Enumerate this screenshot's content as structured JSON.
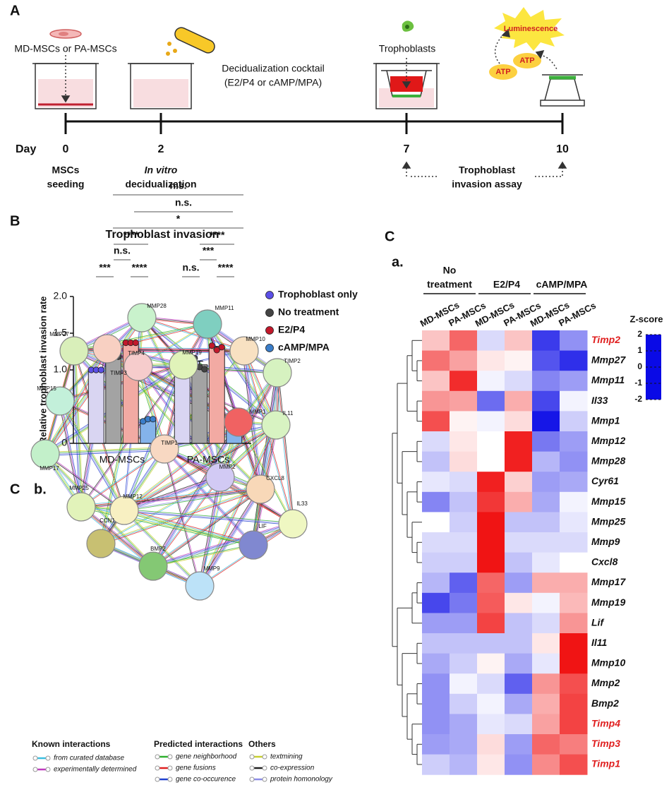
{
  "panel_labels": [
    "A",
    "B",
    "C",
    "C"
  ],
  "sublabels": [
    "a.",
    "b."
  ],
  "schematic": {
    "cells_text": "MD-MSCs or PA-MSCs",
    "cocktail": [
      "Decidualization cocktail",
      "(E2/P4 or cAMP/MPA)"
    ],
    "trophoblasts": "Trophoblasts",
    "luminescence": "Luminescence",
    "atp": [
      "ATP",
      "ATP"
    ],
    "day_label": "Day",
    "days": [
      {
        "day": 0,
        "caption": [
          "MSCs",
          "seeding"
        ]
      },
      {
        "day": 2,
        "caption": [
          "In vitro",
          "decidualization"
        ]
      },
      {
        "day": 7
      },
      {
        "day": 10
      }
    ],
    "assay": [
      "Trophoblast",
      "invasion assay"
    ]
  },
  "chart_data": [
    {
      "type": "bar",
      "title": "Trophoblast invasion",
      "y_label": "Relative trophoblast invasion rate",
      "categories": [
        "MD-MSCs",
        "PA-MSCs"
      ],
      "ylim": [
        0,
        2
      ],
      "yticks": [
        0,
        {
          "value": 0.5,
          "label": "0.5"
        },
        {
          "value": 1,
          "label": "1.0"
        },
        {
          "value": 1.5,
          "label": "1.5"
        },
        {
          "value": 2,
          "label": "2.0"
        }
      ],
      "series": [
        {
          "name": "Trophoblast only",
          "color": "#d9d5f2",
          "point_color": "#5b4fe6",
          "values": [
            1.0,
            1.0
          ],
          "errors": [
            0.005,
            0.005
          ],
          "points": [
            [
              1.0,
              1.0,
              1.0
            ],
            [
              1.0,
              1.0,
              1.0
            ]
          ]
        },
        {
          "name": "No treatment",
          "color": "#a3a3a3",
          "point_color": "#444444",
          "values": [
            1.23,
            1.07
          ],
          "errors": [
            0.06,
            0.05
          ],
          "points": [
            [
              1.35,
              1.17,
              1.18
            ],
            [
              1.16,
              1.04,
              1.01
            ]
          ]
        },
        {
          "name": "E2/P4",
          "color": "#f2aaa3",
          "point_color": "#c2182b",
          "values": [
            1.37,
            1.3
          ],
          "errors": [
            0.005,
            0.02
          ],
          "points": [
            [
              1.37,
              1.37,
              1.37
            ],
            [
              1.33,
              1.27,
              1.31
            ]
          ]
        },
        {
          "name": "cAMP/MPA",
          "color": "#84b3ea",
          "point_color": "#3a7dc9",
          "values": [
            0.32,
            0.32
          ],
          "errors": [
            0.01,
            0.005
          ],
          "points": [
            [
              0.3,
              0.33,
              0.33
            ],
            [
              0.31,
              0.32,
              0.33
            ]
          ]
        }
      ],
      "annotations": [
        "***",
        "n.s.",
        "****",
        "****",
        "n.s.",
        "***",
        "****",
        "****",
        "*",
        "n.s.",
        "n.s."
      ]
    },
    {
      "type": "heatmap",
      "column_groups": [
        {
          "label_lines": [
            "No",
            "treatment"
          ]
        },
        {
          "label_lines": [
            "E2/P4"
          ]
        },
        {
          "label_lines": [
            "cAMP/MPA"
          ]
        }
      ],
      "x": [
        "MD-MSCs",
        "PA-MSCs",
        "MD-MSCs",
        "PA-MSCs",
        "MD-MSCs",
        "PA-MSCs"
      ],
      "y": [
        "Timp2",
        "Mmp27",
        "Mmp11",
        "Il33",
        "Mmp1",
        "Mmp12",
        "Mmp28",
        "Cyr61",
        "Mmp15",
        "Mmp25",
        "Mmp9",
        "Cxcl8",
        "Mmp17",
        "Mmp19",
        "Lif",
        "Il11",
        "Mmp10",
        "Mmp2",
        "Bmp2",
        "Timp4",
        "Timp3",
        "Timp1"
      ],
      "row_label_colors": [
        "#e02020",
        "#111111",
        "#111111",
        "#111111",
        "#111111",
        "#111111",
        "#111111",
        "#111111",
        "#111111",
        "#111111",
        "#111111",
        "#111111",
        "#111111",
        "#111111",
        "#111111",
        "#111111",
        "#111111",
        "#111111",
        "#111111",
        "#e02020",
        "#e02020",
        "#e02020"
      ],
      "values": [
        [
          0.5,
          1.3,
          -0.3,
          0.5,
          -1.6,
          -0.9
        ],
        [
          1.2,
          0.8,
          0.2,
          0.1,
          -1.4,
          -1.7
        ],
        [
          0.5,
          1.8,
          -0.1,
          -0.3,
          -1.0,
          -0.8
        ],
        [
          0.9,
          0.8,
          -1.2,
          0.7,
          -1.5,
          -0.1
        ],
        [
          1.5,
          0.1,
          -0.1,
          0.3,
          -1.9,
          -0.4
        ],
        [
          -0.3,
          0.2,
          0.0,
          1.9,
          -1.1,
          -0.8
        ],
        [
          -0.5,
          0.3,
          0.0,
          1.9,
          -0.6,
          -0.9
        ],
        [
          -0.2,
          -0.3,
          1.9,
          0.4,
          -0.8,
          -0.7
        ],
        [
          -1.0,
          -0.5,
          1.7,
          0.7,
          -0.7,
          -0.1
        ],
        [
          0.0,
          -0.4,
          2.0,
          -0.5,
          -0.5,
          -0.2
        ],
        [
          -0.3,
          -0.3,
          2.0,
          -0.3,
          -0.3,
          -0.3
        ],
        [
          -0.4,
          -0.4,
          2.0,
          -0.5,
          -0.2,
          0.0
        ],
        [
          -0.6,
          -1.3,
          1.3,
          -0.8,
          0.7,
          0.7
        ],
        [
          -1.5,
          -1.1,
          1.4,
          0.2,
          -0.1,
          0.6
        ],
        [
          -0.8,
          -0.8,
          1.6,
          -0.5,
          -0.3,
          0.9
        ],
        [
          -0.5,
          -0.5,
          -0.5,
          -0.5,
          0.2,
          2.0
        ],
        [
          -0.7,
          -0.4,
          0.1,
          -0.7,
          -0.2,
          2.0
        ],
        [
          -0.9,
          -0.1,
          -0.3,
          -1.3,
          0.9,
          1.5
        ],
        [
          -0.9,
          -0.4,
          -0.1,
          -0.7,
          0.7,
          1.6
        ],
        [
          -0.9,
          -0.7,
          -0.2,
          -0.3,
          0.8,
          1.6
        ],
        [
          -0.8,
          -0.7,
          0.3,
          -0.8,
          1.3,
          1.1
        ],
        [
          -0.4,
          -0.6,
          0.2,
          -0.9,
          1.0,
          1.5
        ]
      ],
      "colorbar_title": "Z-score",
      "colorscale": [
        "#0a0ae6",
        "#ffffff",
        "#f01414"
      ],
      "zlim": [
        -2,
        2
      ],
      "zticks": [
        2,
        1,
        0,
        -1,
        -2
      ]
    }
  ],
  "network": {
    "nodes": [
      {
        "label": "MMP28",
        "color": "#c9f2cc"
      },
      {
        "label": "MMP11",
        "color": "#7fcfc0"
      },
      {
        "label": "MMP27",
        "color": "#d9efba"
      },
      {
        "label": "MMP10",
        "color": "#f8e1c2"
      },
      {
        "label": "TIMP2",
        "color": "#d6f2c0"
      },
      {
        "label": "TIMP4",
        "color": "#f6cccc"
      },
      {
        "label": "MMP19",
        "color": "#e0f3b9"
      },
      {
        "label": "MMP15",
        "color": "#c3f0da"
      },
      {
        "label": "TIMP3",
        "color": "#f8d0c2"
      },
      {
        "label": "MMP1",
        "color": "#f06262"
      },
      {
        "label": "IL11",
        "color": "#d8f3c2"
      },
      {
        "label": "MMP17",
        "color": "#c3f0ca"
      },
      {
        "label": "TIMP1",
        "color": "#f8d8c2"
      },
      {
        "label": "MMP2",
        "color": "#d2caf4"
      },
      {
        "label": "CXCL8",
        "color": "#f8d8b8"
      },
      {
        "label": "MMP25",
        "color": "#e2f3ba"
      },
      {
        "label": "MMP12",
        "color": "#f8f0c2"
      },
      {
        "label": "CCN1",
        "color": "#c8c072"
      },
      {
        "label": "IL33",
        "color": "#eff7c2"
      },
      {
        "label": "LIF",
        "color": "#8088d0"
      },
      {
        "label": "BMP2",
        "color": "#84c874"
      },
      {
        "label": "MMP9",
        "color": "#bce2f8"
      }
    ],
    "legend": {
      "groups": [
        {
          "title": "Known interactions",
          "items": [
            {
              "label": "from curated database",
              "color": "#3cbfe0"
            },
            {
              "label": "experimentally determined",
              "color": "#c03cc0"
            }
          ]
        },
        {
          "title": "Predicted interactions",
          "items": [
            {
              "label": "gene neighborhood",
              "color": "#2eb02e"
            },
            {
              "label": "gene fusions",
              "color": "#e02020"
            },
            {
              "label": "gene co-occurence",
              "color": "#2040d0"
            }
          ]
        },
        {
          "title": "Others",
          "items": [
            {
              "label": "textmining",
              "color": "#c8d030"
            },
            {
              "label": "co-expression",
              "color": "#202020"
            },
            {
              "label": "protein homonology",
              "color": "#8c8ce8"
            }
          ]
        }
      ]
    }
  }
}
